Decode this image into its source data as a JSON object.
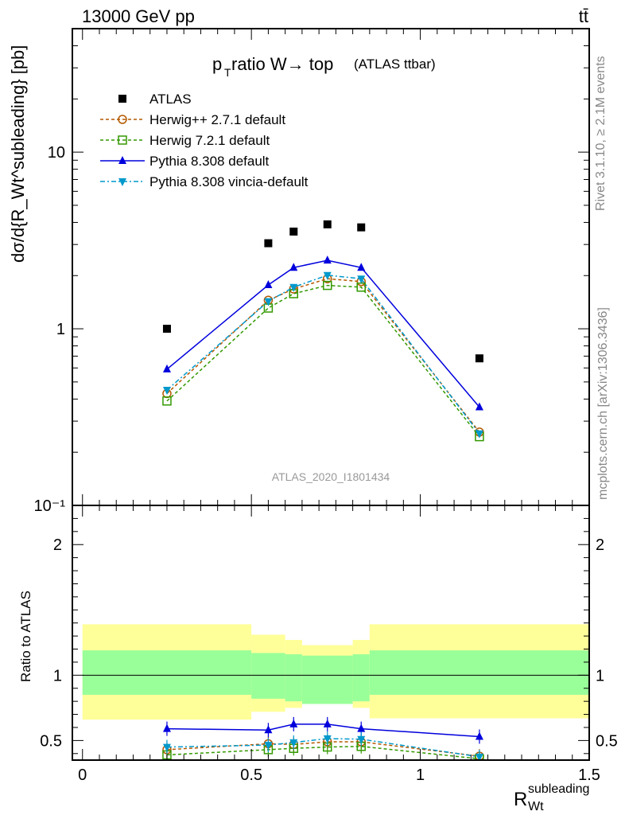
{
  "header": {
    "energy_label": "13000 GeV pp",
    "process_label": "tt̄",
    "rivet_label": "Rivet 3.1.10, ≥ 2.1M events",
    "mcplots_label": "mcplots.cern.ch [arXiv:1306.3436]",
    "analysis_label": "ATLAS_2020_I1801434"
  },
  "colors": {
    "atlas": "#000000",
    "herwig_pp": "#b35900",
    "herwig7": "#339900",
    "pythia": "#0000dd",
    "vincia": "#0099cc",
    "band_inner": "#99ff99",
    "band_outer": "#ffff99"
  },
  "chart_data": [
    {
      "type": "scatter",
      "panel": "main",
      "title_main": "p",
      "title_sub": "T",
      "title_rest": " ratio W→ top",
      "title_paren": "(ATLAS ttbar)",
      "ylabel": "dσ/d{R_Wt^subleading} [pb]",
      "yscale": "log",
      "ylim": [
        0.1,
        50
      ],
      "xlim": [
        -0.03,
        1.5
      ],
      "x": [
        0.25,
        0.55,
        0.625,
        0.725,
        0.825,
        1.175
      ],
      "y_tick_labels": [
        "10⁻¹",
        "1",
        "10"
      ],
      "series": [
        {
          "name": "ATLAS",
          "key": "atlas",
          "marker": "square",
          "values": [
            1.0,
            3.05,
            3.55,
            3.9,
            3.75,
            0.68
          ]
        },
        {
          "name": "Herwig++ 2.7.1 default",
          "key": "herwig_pp",
          "marker": "circle-open",
          "values": [
            0.43,
            1.45,
            1.68,
            1.92,
            1.85,
            0.26
          ]
        },
        {
          "name": "Herwig 7.2.1 default",
          "key": "herwig7",
          "marker": "square-open",
          "values": [
            0.39,
            1.31,
            1.58,
            1.76,
            1.72,
            0.245
          ]
        },
        {
          "name": "Pythia 8.308 default",
          "key": "pythia",
          "marker": "triangle-up",
          "values": [
            0.59,
            1.77,
            2.22,
            2.44,
            2.22,
            0.36
          ]
        },
        {
          "name": "Pythia 8.308 vincia-default",
          "key": "vincia",
          "marker": "triangle-down",
          "values": [
            0.45,
            1.43,
            1.72,
            2.01,
            1.92,
            0.255
          ]
        }
      ]
    },
    {
      "type": "line",
      "panel": "ratio",
      "ylabel": "Ratio to ATLAS",
      "xlabel_main": "R",
      "xlabel_sub": "Wt",
      "xlabel_sup": "subleading",
      "xlim": [
        -0.03,
        1.5
      ],
      "ylim": [
        0.35,
        2.3
      ],
      "x_ticks": [
        0,
        0.5,
        1,
        1.5
      ],
      "x_tick_labels": [
        "0",
        "0.5",
        "1",
        "1.5"
      ],
      "y_ticks": [
        0.5,
        1,
        2
      ],
      "y_tick_labels": [
        "0.5",
        "1",
        "2"
      ],
      "bins": [
        [
          0.0,
          0.5
        ],
        [
          0.5,
          0.6
        ],
        [
          0.6,
          0.65
        ],
        [
          0.65,
          0.8
        ],
        [
          0.8,
          0.85
        ],
        [
          0.85,
          1.5
        ]
      ],
      "band_inner": [
        [
          0.85,
          1.19
        ],
        [
          0.82,
          1.17
        ],
        [
          0.8,
          1.16
        ],
        [
          0.78,
          1.15
        ],
        [
          0.8,
          1.16
        ],
        [
          0.85,
          1.19
        ]
      ],
      "band_outer": [
        [
          0.66,
          1.39
        ],
        [
          0.72,
          1.31
        ],
        [
          0.75,
          1.27
        ],
        [
          0.8,
          1.23
        ],
        [
          0.75,
          1.27
        ],
        [
          0.67,
          1.39
        ]
      ],
      "x": [
        0.25,
        0.55,
        0.625,
        0.725,
        0.825,
        1.175
      ],
      "series": [
        {
          "name": "Herwig++ 2.7.1 default",
          "key": "herwig_pp",
          "marker": "circle-open",
          "values": [
            0.43,
            0.475,
            0.47,
            0.49,
            0.49,
            0.38
          ]
        },
        {
          "name": "Herwig 7.2.1 default",
          "key": "herwig7",
          "marker": "square-open",
          "values": [
            0.39,
            0.43,
            0.44,
            0.45,
            0.455,
            0.36
          ]
        },
        {
          "name": "Pythia 8.308 default",
          "key": "pythia",
          "marker": "triangle-up",
          "values": [
            0.59,
            0.58,
            0.625,
            0.625,
            0.59,
            0.53
          ]
        },
        {
          "name": "Pythia 8.308 vincia-default",
          "key": "vincia",
          "marker": "triangle-down",
          "values": [
            0.45,
            0.465,
            0.485,
            0.515,
            0.51,
            0.375
          ]
        }
      ]
    }
  ]
}
